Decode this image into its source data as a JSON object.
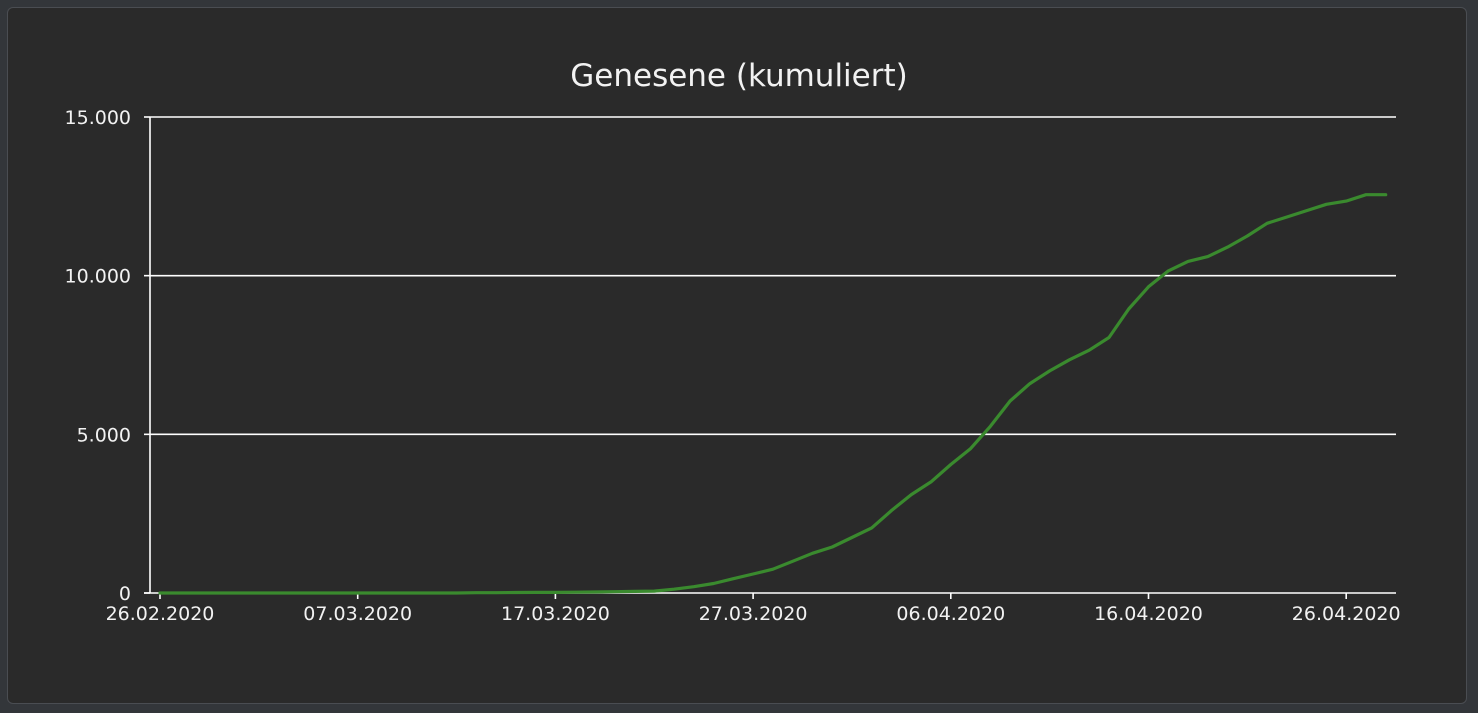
{
  "chart_data": {
    "type": "line",
    "title": "Genesene (kumuliert)",
    "xlabel": "",
    "ylabel": "",
    "x_ticks": [
      "26.02.2020",
      "07.03.2020",
      "17.03.2020",
      "27.03.2020",
      "06.04.2020",
      "16.04.2020",
      "26.04.2020"
    ],
    "y_ticks": [
      "0",
      "5.000",
      "10.000",
      "15.000"
    ],
    "ylim": [
      0,
      15000
    ],
    "grid": "horizontal",
    "colors": {
      "line": "#3a8a2e",
      "grid": "#ffffff",
      "text": "#f2f2f2",
      "background": "#2a2a2a"
    },
    "series": [
      {
        "x": [
          "26.02.2020",
          "27.02.2020",
          "28.02.2020",
          "29.02.2020",
          "01.03.2020",
          "02.03.2020",
          "03.03.2020",
          "04.03.2020",
          "05.03.2020",
          "06.03.2020",
          "07.03.2020",
          "08.03.2020",
          "09.03.2020",
          "10.03.2020",
          "11.03.2020",
          "12.03.2020",
          "13.03.2020",
          "14.03.2020",
          "15.03.2020",
          "16.03.2020",
          "17.03.2020",
          "18.03.2020",
          "19.03.2020",
          "20.03.2020",
          "21.03.2020",
          "22.03.2020",
          "23.03.2020",
          "24.03.2020",
          "25.03.2020",
          "26.03.2020",
          "27.03.2020",
          "28.03.2020",
          "29.03.2020",
          "30.03.2020",
          "31.03.2020",
          "01.04.2020",
          "02.04.2020",
          "03.04.2020",
          "04.04.2020",
          "05.04.2020",
          "06.04.2020",
          "07.04.2020",
          "08.04.2020",
          "09.04.2020",
          "10.04.2020",
          "11.04.2020",
          "12.04.2020",
          "13.04.2020",
          "14.04.2020",
          "15.04.2020",
          "16.04.2020",
          "17.04.2020",
          "18.04.2020",
          "19.04.2020",
          "20.04.2020",
          "21.04.2020",
          "22.04.2020",
          "23.04.2020",
          "24.04.2020",
          "25.04.2020",
          "26.04.2020",
          "27.04.2020",
          "28.04.2020"
        ],
        "values": [
          0,
          0,
          0,
          0,
          0,
          0,
          0,
          0,
          0,
          0,
          0,
          0,
          0,
          0,
          0,
          0,
          10,
          10,
          15,
          20,
          20,
          25,
          30,
          40,
          50,
          60,
          120,
          200,
          300,
          450,
          600,
          750,
          1000,
          1250,
          1450,
          1750,
          2050,
          2600,
          3100,
          3500,
          4050,
          4550,
          5250,
          6050,
          6600,
          7000,
          7350,
          7650,
          8050,
          8950,
          9650,
          10150,
          10450,
          10600,
          10900,
          11250,
          11650,
          11850,
          12050,
          12250,
          12350,
          12550,
          12550
        ]
      }
    ]
  }
}
